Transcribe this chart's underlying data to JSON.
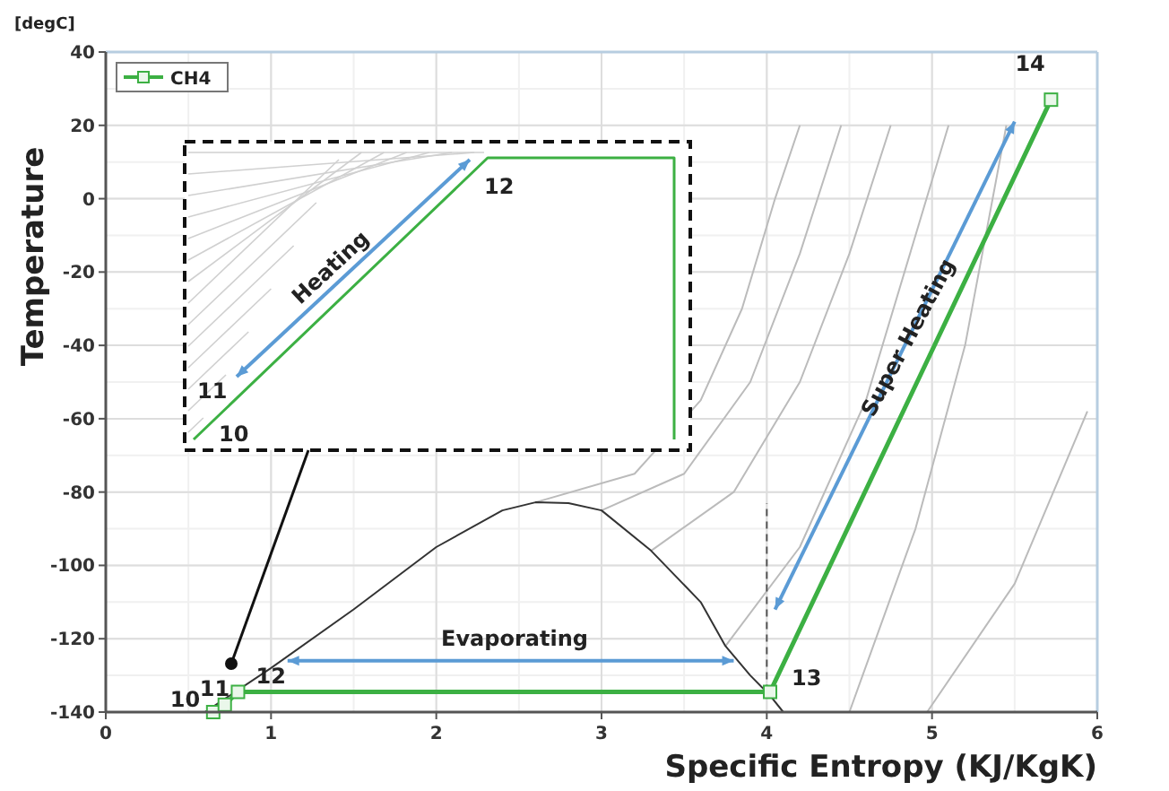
{
  "chart_data": {
    "type": "line",
    "xlabel": "Specific Entropy (KJ/KgK)",
    "ylabel": "Temperature",
    "xlim": [
      0,
      6
    ],
    "xticks": [
      0,
      1,
      2,
      3,
      4,
      5,
      6
    ],
    "ylim": [
      -140,
      40
    ],
    "yticks": [
      -140,
      -120,
      -100,
      -80,
      -60,
      -40,
      -20,
      0,
      20,
      40
    ],
    "grid": true,
    "legend": "top left",
    "marker": "none",
    "series": [
      {
        "color": "#bbbbbb",
        "x": [
          2.6,
          3.2,
          3.6,
          3.85,
          4.05,
          4.2
        ],
        "values": [
          -82.8,
          -75,
          -55,
          -30,
          0,
          20
        ]
      },
      {
        "color": "#bbbbbb",
        "x": [
          3.0,
          3.5,
          3.9,
          4.2,
          4.45
        ],
        "values": [
          -85,
          -75,
          -50,
          -15,
          20
        ]
      },
      {
        "color": "#bbbbbb",
        "x": [
          3.3,
          3.8,
          4.2,
          4.5,
          4.75
        ],
        "values": [
          -96,
          -80,
          -50,
          -15,
          20
        ]
      },
      {
        "color": "#bbbbbb",
        "x": [
          3.75,
          4.2,
          4.6,
          5.1
        ],
        "values": [
          -122,
          -95,
          -55,
          20
        ]
      },
      {
        "color": "#bbbbbb",
        "x": [
          4.5,
          4.9,
          5.2,
          5.45
        ],
        "values": [
          -140,
          -90,
          -40,
          20
        ]
      },
      {
        "color": "#bbbbbb",
        "x": [
          4.97,
          5.5,
          5.94
        ],
        "values": [
          -140,
          -105,
          -58
        ]
      },
      {
        "color": "#333333",
        "x": [
          0.6,
          1,
          1.5,
          2,
          2.4,
          2.6,
          2.8,
          3,
          3.3,
          3.6,
          3.75,
          3.9,
          4.02,
          4.1
        ],
        "values": [
          -140,
          -128,
          -112,
          -95,
          -85,
          -82.8,
          -83,
          -85,
          -96,
          -110,
          -122,
          -130,
          -135.5,
          -140
        ]
      },
      {
        "color": "#555555",
        "line_style": "dashed",
        "x": [
          4,
          4
        ],
        "values": [
          -134.5,
          -83
        ]
      },
      {
        "name": "CH4",
        "color": "#3cb043",
        "marker": "square",
        "x": [
          0.65,
          0.72,
          0.8,
          4.02,
          5.72
        ],
        "values": [
          -140,
          -138,
          -134.5,
          -134.5,
          27
        ]
      }
    ],
    "annotations": [
      {
        "text": "10",
        "x": 0.65,
        "y": -140
      },
      {
        "text": "11",
        "x": 0.72,
        "y": -138
      },
      {
        "text": "12",
        "x": 0.8,
        "y": -134.5
      },
      {
        "text": "13",
        "x": 4.02,
        "y": -134.5
      },
      {
        "text": "14",
        "x": 5.72,
        "y": 27
      },
      "Evaporating",
      "Super Heating",
      "[degC]",
      "Heating",
      "11",
      "10",
      "12"
    ]
  }
}
